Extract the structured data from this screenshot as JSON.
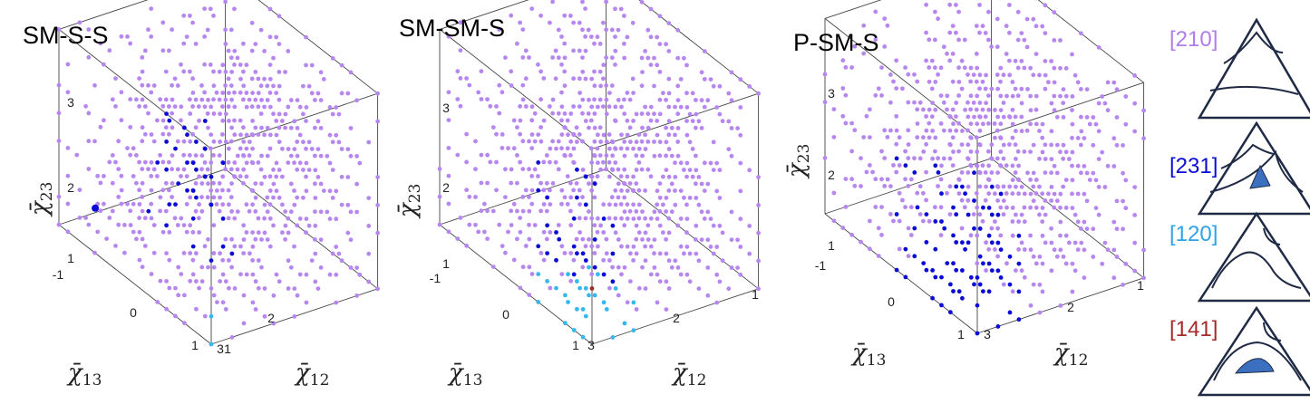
{
  "panels": [
    {
      "title": "SM-S-S"
    },
    {
      "title": "SM-SM-S"
    },
    {
      "title": "P-SM-S"
    }
  ],
  "axes": {
    "x_var": "χ̄",
    "x_sub": "12",
    "y_var": "χ̄",
    "y_sub": "13",
    "z_var": "χ̄",
    "z_sub": "23",
    "x_ticks": [
      "1",
      "2",
      "3"
    ],
    "y_ticks": [
      "-1",
      "0",
      "1"
    ],
    "z_ticks": [
      "1",
      "2",
      "3"
    ]
  },
  "legend": [
    {
      "label": "[210]",
      "color": "#b07de8"
    },
    {
      "label": "[231]",
      "color": "#0b0bd6"
    },
    {
      "label": "[120]",
      "color": "#2fa3e6"
    },
    {
      "label": "[141]",
      "color": "#a52a2a"
    }
  ],
  "colors": {
    "c210": "#b787f0",
    "c231": "#0b0bd6",
    "c120": "#35b8ee",
    "c141": "#a52a2a",
    "shade": "#3b6fc0",
    "box": "#444444"
  },
  "chart_data": [
    {
      "type": "scatter",
      "title": "SM-S-S",
      "x_range": [
        1,
        3
      ],
      "y_range": [
        -1,
        1
      ],
      "z_range": [
        1,
        3
      ],
      "series": [
        {
          "name": "[210]",
          "description": "dense grid filling most of the cube"
        },
        {
          "name": "[231]",
          "description": "upper layers near χ̄12≈1, χ̄13≈1; small cluster at χ̄12≈3, χ̄13≈1, χ̄23≈1"
        },
        {
          "name": "[120]",
          "description": "bottom front corner χ̄12≈1, χ̄13≈1, χ̄23≈1"
        }
      ]
    },
    {
      "type": "scatter",
      "title": "SM-SM-S",
      "x_range": [
        1,
        3
      ],
      "y_range": [
        -1,
        1
      ],
      "z_range": [
        1,
        3
      ],
      "series": [
        {
          "name": "[210]",
          "description": "dense grid filling most of the cube"
        },
        {
          "name": "[231]",
          "description": "mid to upper layers near χ̄12≈1, χ̄13≈1"
        },
        {
          "name": "[120]",
          "description": "bottom layer near χ̄12≈1, χ̄13≈1"
        },
        {
          "name": "[141]",
          "description": "small cluster at χ̄12≈1, χ̄13≈1, χ̄23≈1.3"
        }
      ]
    },
    {
      "type": "scatter",
      "title": "P-SM-S",
      "x_range": [
        1,
        3
      ],
      "y_range": [
        -1,
        1
      ],
      "z_range": [
        1,
        3
      ],
      "series": [
        {
          "name": "[210]",
          "description": "grid filling the cube"
        },
        {
          "name": "[231]",
          "description": "large block near χ̄12≈1, χ̄13≈1 for χ̄23 ≤ 2"
        }
      ]
    }
  ]
}
